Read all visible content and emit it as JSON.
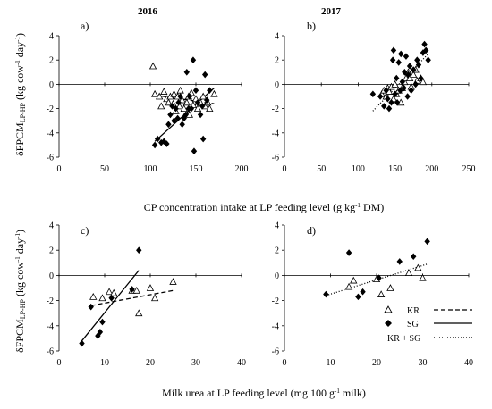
{
  "ylabel_main": "δFPCM",
  "ylabel_sub": "LP-HP",
  "ylabel_unit_pre": " (kg cow",
  "ylabel_unit_sup1": "-1",
  "ylabel_unit_mid": " day",
  "ylabel_unit_sup2": "-1",
  "ylabel_unit_post": ")",
  "xlabel_top_pre": "CP concentration intake at LP feeding level (g kg",
  "xlabel_top_sup": "-1",
  "xlabel_top_post": " DM)",
  "xlabel_bottom_pre": "Milk urea at LP feeding level (mg 100 g",
  "xlabel_bottom_sup": "-1",
  "xlabel_bottom_post": " milk)",
  "legend": {
    "kr": "KR",
    "sg": "SG",
    "kr_sg": "KR + SG"
  },
  "colors": {
    "points": "#000000",
    "lines": "#000000",
    "background": "#ffffff"
  },
  "chart_data": [
    {
      "id": "a",
      "panel_label": "a)",
      "title": "2016",
      "type": "scatter",
      "xlim": [
        0,
        200
      ],
      "ylim": [
        -6,
        4
      ],
      "xticks": [
        "0",
        "50",
        "100",
        "150",
        "200"
      ],
      "yticks": [
        "4",
        "2",
        "0",
        "-2",
        "-4",
        "-6"
      ],
      "series": [
        {
          "name": "KR",
          "marker": "triangle-open",
          "points": [
            [
              103,
              1.5
            ],
            [
              105,
              -0.8
            ],
            [
              110,
              -1.0
            ],
            [
              112,
              -1.8
            ],
            [
              115,
              -0.6
            ],
            [
              118,
              -1.2
            ],
            [
              120,
              -1.5
            ],
            [
              122,
              -1.0
            ],
            [
              125,
              -1.6
            ],
            [
              126,
              -0.8
            ],
            [
              128,
              -2.2
            ],
            [
              130,
              -1.0
            ],
            [
              132,
              -1.8
            ],
            [
              133,
              -0.5
            ],
            [
              135,
              -1.3
            ],
            [
              137,
              -2.0
            ],
            [
              140,
              -1.5
            ],
            [
              142,
              -1.0
            ],
            [
              143,
              -2.5
            ],
            [
              145,
              -0.7
            ],
            [
              147,
              -1.7
            ],
            [
              150,
              -1.2
            ],
            [
              152,
              -2.0
            ],
            [
              155,
              -1.5
            ],
            [
              158,
              -1.0
            ],
            [
              160,
              -1.8
            ],
            [
              163,
              -1.5
            ],
            [
              165,
              -2.0
            ],
            [
              170,
              -0.8
            ]
          ]
        },
        {
          "name": "SG",
          "marker": "diamond-filled",
          "points": [
            [
              105,
              -5.0
            ],
            [
              108,
              -4.5
            ],
            [
              112,
              -4.8
            ],
            [
              115,
              -4.7
            ],
            [
              118,
              -4.9
            ],
            [
              120,
              -3.3
            ],
            [
              122,
              -2.5
            ],
            [
              124,
              -1.8
            ],
            [
              126,
              -3.0
            ],
            [
              128,
              -2.0
            ],
            [
              130,
              -2.8
            ],
            [
              131,
              -1.5
            ],
            [
              133,
              -1.0
            ],
            [
              135,
              -3.3
            ],
            [
              137,
              -2.8
            ],
            [
              139,
              -2.5
            ],
            [
              140,
              1.0
            ],
            [
              142,
              -2.0
            ],
            [
              143,
              -1.0
            ],
            [
              145,
              -2.0
            ],
            [
              147,
              2.0
            ],
            [
              148,
              -5.5
            ],
            [
              150,
              -0.5
            ],
            [
              152,
              -1.5
            ],
            [
              155,
              -2.5
            ],
            [
              157,
              -1.8
            ],
            [
              158,
              -4.5
            ],
            [
              160,
              0.8
            ],
            [
              162,
              -1.3
            ],
            [
              165,
              -0.5
            ]
          ]
        }
      ],
      "fits": [
        {
          "series": "KR",
          "style": "dashed",
          "x": [
            105,
            170
          ],
          "y": [
            -0.9,
            -1.6
          ]
        },
        {
          "series": "SG",
          "style": "solid",
          "x": [
            105,
            170
          ],
          "y": [
            -4.7,
            -0.3
          ]
        }
      ]
    },
    {
      "id": "b",
      "panel_label": "b)",
      "title": "2017",
      "type": "scatter",
      "xlim": [
        0,
        250
      ],
      "ylim": [
        -6,
        4
      ],
      "xticks": [
        "0",
        "50",
        "100",
        "150",
        "200",
        "250"
      ],
      "yticks": [
        "4",
        "2",
        "0",
        "-2",
        "-4",
        "-6"
      ],
      "series": [
        {
          "name": "KR",
          "marker": "triangle-open",
          "points": [
            [
              132,
              -0.8
            ],
            [
              135,
              -0.5
            ],
            [
              138,
              -1.0
            ],
            [
              140,
              -0.3
            ],
            [
              142,
              -0.6
            ],
            [
              145,
              -0.2
            ],
            [
              148,
              -1.2
            ],
            [
              150,
              0.0
            ],
            [
              152,
              -0.8
            ],
            [
              155,
              -0.5
            ],
            [
              158,
              -1.5
            ],
            [
              160,
              -0.3
            ],
            [
              163,
              0.2
            ],
            [
              165,
              0.5
            ],
            [
              168,
              1.0
            ],
            [
              170,
              0.5
            ],
            [
              172,
              -0.2
            ],
            [
              175,
              0.8
            ],
            [
              178,
              1.2
            ],
            [
              180,
              0.3
            ],
            [
              185,
              0.5
            ],
            [
              188,
              0.2
            ]
          ]
        },
        {
          "name": "SG",
          "marker": "diamond-filled",
          "points": [
            [
              120,
              -0.8
            ],
            [
              130,
              -1.0
            ],
            [
              135,
              -1.8
            ],
            [
              138,
              -0.5
            ],
            [
              140,
              -1.2
            ],
            [
              142,
              -2.0
            ],
            [
              145,
              -1.5
            ],
            [
              147,
              2.0
            ],
            [
              148,
              2.8
            ],
            [
              150,
              -0.8
            ],
            [
              152,
              0.5
            ],
            [
              153,
              -1.5
            ],
            [
              155,
              1.8
            ],
            [
              157,
              -0.5
            ],
            [
              158,
              2.5
            ],
            [
              160,
              0.2
            ],
            [
              162,
              -0.3
            ],
            [
              163,
              1.0
            ],
            [
              165,
              2.3
            ],
            [
              167,
              -1.0
            ],
            [
              168,
              0.8
            ],
            [
              170,
              1.5
            ],
            [
              172,
              -0.5
            ],
            [
              175,
              1.2
            ],
            [
              178,
              0.0
            ],
            [
              180,
              2.0
            ],
            [
              182,
              1.6
            ],
            [
              185,
              0.5
            ],
            [
              188,
              2.6
            ],
            [
              190,
              3.3
            ],
            [
              192,
              2.8
            ],
            [
              195,
              2.0
            ]
          ]
        }
      ],
      "fits": [
        {
          "series": "KR + SG",
          "style": "dotted",
          "x": [
            120,
            195
          ],
          "y": [
            -2.2,
            2.5
          ]
        }
      ]
    },
    {
      "id": "c",
      "panel_label": "c)",
      "title": "",
      "type": "scatter",
      "xlim": [
        0,
        40
      ],
      "ylim": [
        -6,
        4
      ],
      "xticks": [
        "0",
        "10",
        "20",
        "30",
        "40"
      ],
      "yticks": [
        "4",
        "2",
        "0",
        "-2",
        "-4",
        "-6"
      ],
      "series": [
        {
          "name": "KR",
          "marker": "triangle-open",
          "points": [
            [
              7.5,
              -1.7
            ],
            [
              9.5,
              -1.8
            ],
            [
              11,
              -1.3
            ],
            [
              12,
              -1.4
            ],
            [
              16,
              -1.2
            ],
            [
              17,
              -1.2
            ],
            [
              17.5,
              -3.0
            ],
            [
              20,
              -1.0
            ],
            [
              21,
              -1.8
            ],
            [
              25,
              -0.5
            ]
          ]
        },
        {
          "name": "SG",
          "marker": "diamond-filled",
          "points": [
            [
              5,
              -5.4
            ],
            [
              7,
              -2.5
            ],
            [
              8.5,
              -4.8
            ],
            [
              9,
              -4.5
            ],
            [
              9.5,
              -3.7
            ],
            [
              11.5,
              -1.8
            ],
            [
              16,
              -1.1
            ],
            [
              17.5,
              2.0
            ]
          ]
        }
      ],
      "fits": [
        {
          "series": "KR",
          "style": "dashed",
          "x": [
            7,
            25
          ],
          "y": [
            -2.4,
            -1.2
          ]
        },
        {
          "series": "SG",
          "style": "solid",
          "x": [
            5,
            17.5
          ],
          "y": [
            -5.2,
            0.4
          ]
        }
      ]
    },
    {
      "id": "d",
      "panel_label": "d)",
      "title": "",
      "type": "scatter",
      "xlim": [
        0,
        40
      ],
      "ylim": [
        -6,
        4
      ],
      "xticks": [
        "0",
        "10",
        "20",
        "30",
        "40"
      ],
      "yticks": [
        "4",
        "2",
        "0",
        "-2",
        "-4",
        "-6"
      ],
      "series": [
        {
          "name": "KR",
          "marker": "triangle-open",
          "points": [
            [
              14,
              -0.9
            ],
            [
              15,
              -0.4
            ],
            [
              20,
              -0.3
            ],
            [
              21,
              -1.5
            ],
            [
              23,
              -1.0
            ],
            [
              27,
              0.2
            ],
            [
              29,
              0.6
            ],
            [
              30,
              -0.2
            ]
          ]
        },
        {
          "name": "SG",
          "marker": "diamond-filled",
          "points": [
            [
              9,
              -1.5
            ],
            [
              14,
              1.8
            ],
            [
              16,
              -1.7
            ],
            [
              17,
              -1.3
            ],
            [
              20.5,
              -0.2
            ],
            [
              25,
              1.1
            ],
            [
              28,
              1.5
            ],
            [
              31,
              2.7
            ]
          ]
        }
      ],
      "fits": [
        {
          "series": "KR + SG",
          "style": "dotted",
          "x": [
            9,
            31
          ],
          "y": [
            -1.6,
            0.9
          ]
        }
      ]
    }
  ]
}
